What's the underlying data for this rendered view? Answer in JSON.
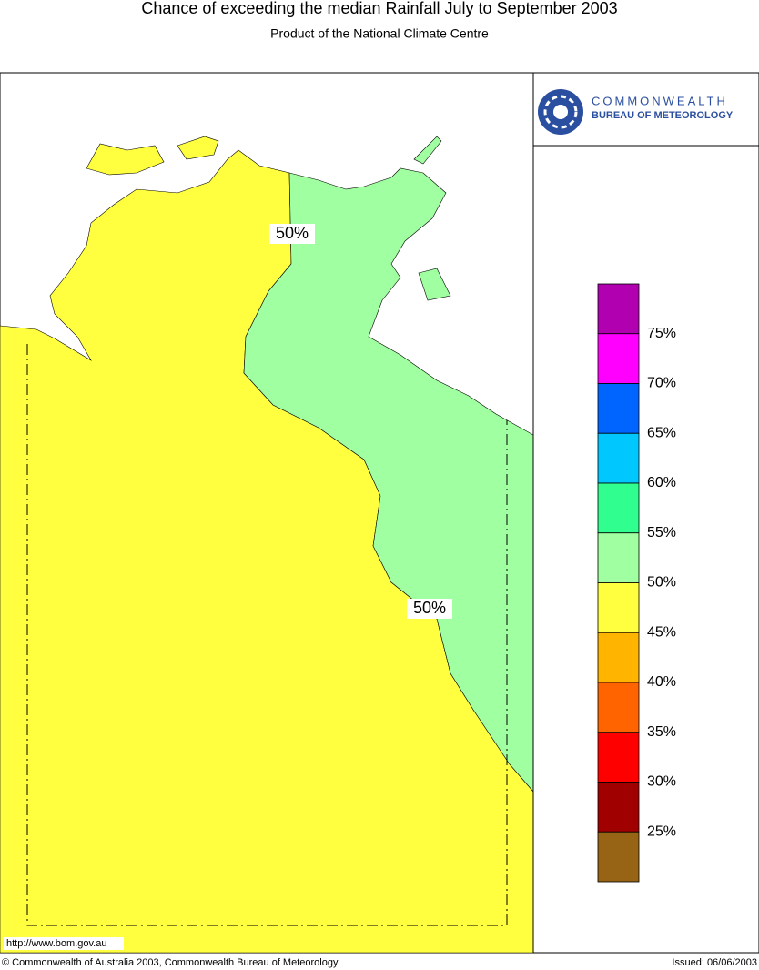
{
  "header": {
    "title": "Chance of exceeding the median Rainfall July to September 2003",
    "subtitle": "Product of the National Climate Centre"
  },
  "logo": {
    "line1": "COMMONWEALTH",
    "line2": "BUREAU OF METEOROLOGY"
  },
  "map": {
    "contour_labels": [
      "50%",
      "50%"
    ],
    "url": "http://www.bom.gov.au"
  },
  "legend": {
    "colors": [
      "#b000b0",
      "#ff00ff",
      "#0064ff",
      "#00c8ff",
      "#30ff90",
      "#a0ffa0",
      "#ffff40",
      "#ffb400",
      "#ff6400",
      "#ff0000",
      "#a00000",
      "#966414"
    ],
    "labels": [
      "75%",
      "70%",
      "65%",
      "60%",
      "55%",
      "50%",
      "45%",
      "40%",
      "35%",
      "30%",
      "25%"
    ]
  },
  "footer": {
    "copyright": "© Commonwealth of Australia 2003, Commonwealth Bureau of Meteorology",
    "issued": "Issued: 06/06/2003"
  }
}
